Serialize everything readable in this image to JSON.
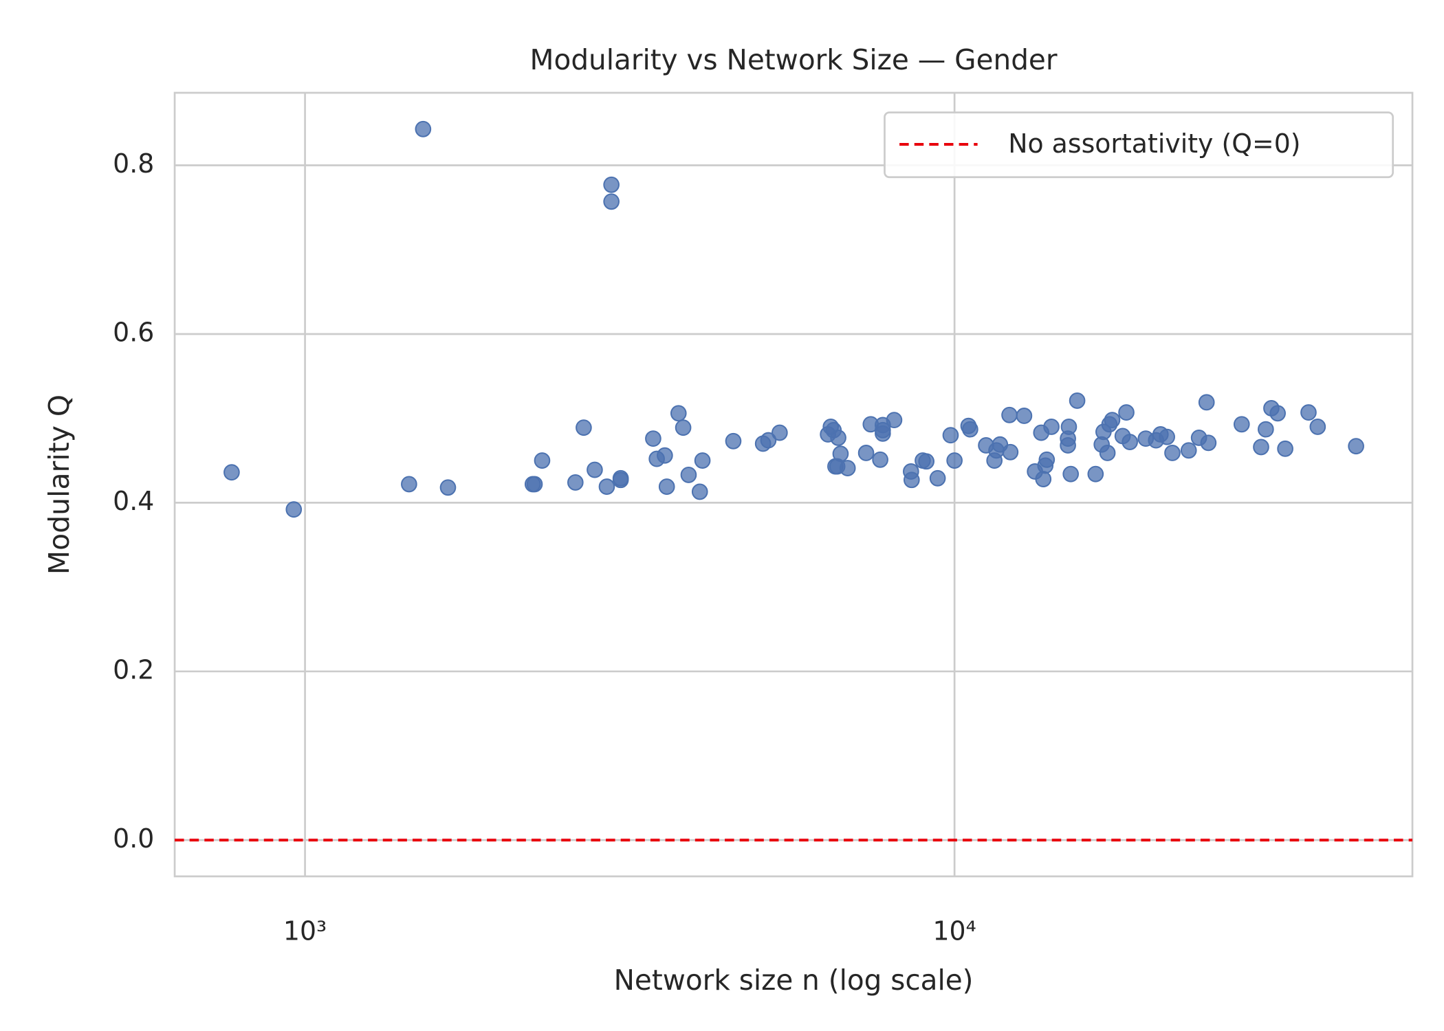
{
  "chart_data": {
    "type": "scatter",
    "title": "Modularity vs Network Size — Gender",
    "x_label": "Network size n (log scale)",
    "y_label": "Modularity Q",
    "xscale": "log",
    "xlim": [
      630,
      50700
    ],
    "ylim": [
      -0.043,
      0.886
    ],
    "xticks": [
      {
        "value": 1000,
        "label": "10³"
      },
      {
        "value": 10000,
        "label": "10⁴"
      }
    ],
    "yticks": [
      {
        "value": 0,
        "label": "0.0"
      },
      0.2,
      0.4,
      0.6,
      0.8
    ],
    "grid": true,
    "legend": "upper right",
    "reference_line": {
      "y": 0,
      "label": "No assortativity (Q=0)",
      "color": "#e8000b"
    },
    "series": [
      {
        "color": "#4c72b0",
        "x": [
          771,
          961,
          1520,
          1446,
          1660,
          2242,
          2257,
          2318,
          2608,
          2686,
          2793,
          2915,
          2963,
          2963,
          3062,
          3062,
          3436,
          3480,
          3581,
          3606,
          3759,
          3822,
          3896,
          4054,
          4092,
          4565,
          5072,
          5169,
          5380,
          6385,
          6449,
          6514,
          6622,
          6555,
          6677,
          6600,
          6846,
          7310,
          7430,
          7685,
          7755,
          7755,
          7755,
          8075,
          8570,
          8590,
          8935,
          9050,
          9420,
          9863,
          10000,
          10508,
          10570,
          11184,
          11520,
          11600,
          11750,
          12190,
          12150,
          12800,
          13300,
          13600,
          13700,
          13800,
          13870,
          14100,
          14950,
          15000,
          14950,
          15100,
          15450,
          16490,
          16850,
          16960,
          17200,
          17320,
          17490,
          18150,
          18390,
          18620,
          19700,
          20430,
          20760,
          21240,
          21650,
          22940,
          23790,
          24440,
          24600,
          27680,
          29650,
          30150,
          30750,
          31450,
          32300,
          35080,
          36240,
          41520
        ],
        "values": [
          0.436,
          0.392,
          0.843,
          0.422,
          0.418,
          0.422,
          0.422,
          0.45,
          0.424,
          0.489,
          0.439,
          0.419,
          0.777,
          0.757,
          0.429,
          0.427,
          0.476,
          0.452,
          0.456,
          0.419,
          0.506,
          0.489,
          0.433,
          0.413,
          0.45,
          0.473,
          0.47,
          0.474,
          0.483,
          0.481,
          0.49,
          0.486,
          0.477,
          0.443,
          0.458,
          0.443,
          0.441,
          0.459,
          0.493,
          0.451,
          0.492,
          0.482,
          0.486,
          0.498,
          0.437,
          0.427,
          0.45,
          0.449,
          0.429,
          0.48,
          0.45,
          0.491,
          0.487,
          0.468,
          0.45,
          0.462,
          0.469,
          0.46,
          0.504,
          0.503,
          0.437,
          0.483,
          0.428,
          0.444,
          0.451,
          0.49,
          0.468,
          0.49,
          0.476,
          0.434,
          0.521,
          0.434,
          0.469,
          0.484,
          0.459,
          0.493,
          0.498,
          0.479,
          0.507,
          0.472,
          0.476,
          0.474,
          0.481,
          0.478,
          0.459,
          0.462,
          0.477,
          0.519,
          0.471,
          0.493,
          0.466,
          0.487,
          0.512,
          0.506,
          0.464,
          0.507,
          0.49,
          0.467
        ]
      }
    ]
  }
}
